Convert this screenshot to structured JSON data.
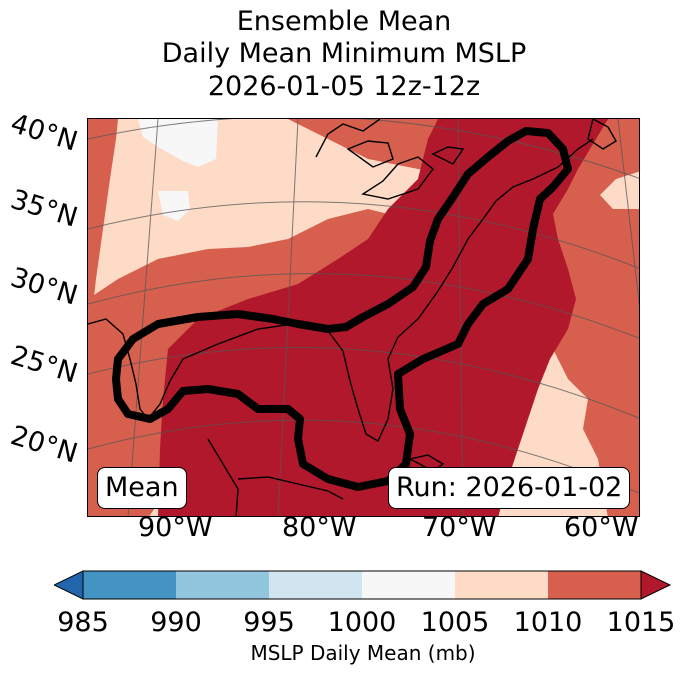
{
  "title": {
    "line1": "Ensemble Mean",
    "line2": "Daily Mean Minimum MSLP",
    "line3": "2026-01-05 12z-12z"
  },
  "latitudes": [
    "40°N",
    "35°N",
    "30°N",
    "25°N",
    "20°N"
  ],
  "longitudes": [
    "90°W",
    "80°W",
    "70°W",
    "60°W"
  ],
  "badges": {
    "left": "Mean",
    "right": "Run: 2026-01-02"
  },
  "colorbar": {
    "ticks": [
      "985",
      "990",
      "995",
      "1000",
      "1005",
      "1010",
      "1015"
    ],
    "title": "MSLP Daily Mean (mb)",
    "colors": [
      "#2166ac",
      "#4393c3",
      "#92c5de",
      "#d1e5f0",
      "#f7f7f7",
      "#fddbc7",
      "#d6604d",
      "#b2182b"
    ]
  },
  "map": {
    "contour_color": "#000000",
    "coastline_color": "#000000"
  }
}
